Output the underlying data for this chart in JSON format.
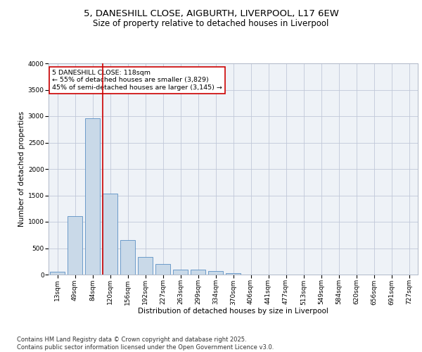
{
  "title_line1": "5, DANESHILL CLOSE, AIGBURTH, LIVERPOOL, L17 6EW",
  "title_line2": "Size of property relative to detached houses in Liverpool",
  "xlabel": "Distribution of detached houses by size in Liverpool",
  "ylabel": "Number of detached properties",
  "categories": [
    "13sqm",
    "49sqm",
    "84sqm",
    "120sqm",
    "156sqm",
    "192sqm",
    "227sqm",
    "263sqm",
    "299sqm",
    "334sqm",
    "370sqm",
    "406sqm",
    "441sqm",
    "477sqm",
    "513sqm",
    "549sqm",
    "584sqm",
    "620sqm",
    "656sqm",
    "691sqm",
    "727sqm"
  ],
  "values": [
    55,
    1110,
    2960,
    1535,
    650,
    340,
    200,
    100,
    95,
    70,
    30,
    5,
    5,
    0,
    0,
    0,
    0,
    0,
    0,
    0,
    0
  ],
  "bar_color": "#c9d9e8",
  "bar_edge_color": "#5a8fc3",
  "vline_x_index": 3,
  "vline_color": "#cc0000",
  "annotation_text": "5 DANESHILL CLOSE: 118sqm\n← 55% of detached houses are smaller (3,829)\n45% of semi-detached houses are larger (3,145) →",
  "annotation_box_color": "#cc0000",
  "ylim": [
    0,
    4000
  ],
  "yticks": [
    0,
    500,
    1000,
    1500,
    2000,
    2500,
    3000,
    3500,
    4000
  ],
  "grid_color": "#c0c8d8",
  "background_color": "#eef2f7",
  "footer_text": "Contains HM Land Registry data © Crown copyright and database right 2025.\nContains public sector information licensed under the Open Government Licence v3.0.",
  "title_fontsize": 9.5,
  "subtitle_fontsize": 8.5,
  "axis_label_fontsize": 7.5,
  "tick_fontsize": 6.5,
  "annotation_fontsize": 6.8,
  "footer_fontsize": 6
}
